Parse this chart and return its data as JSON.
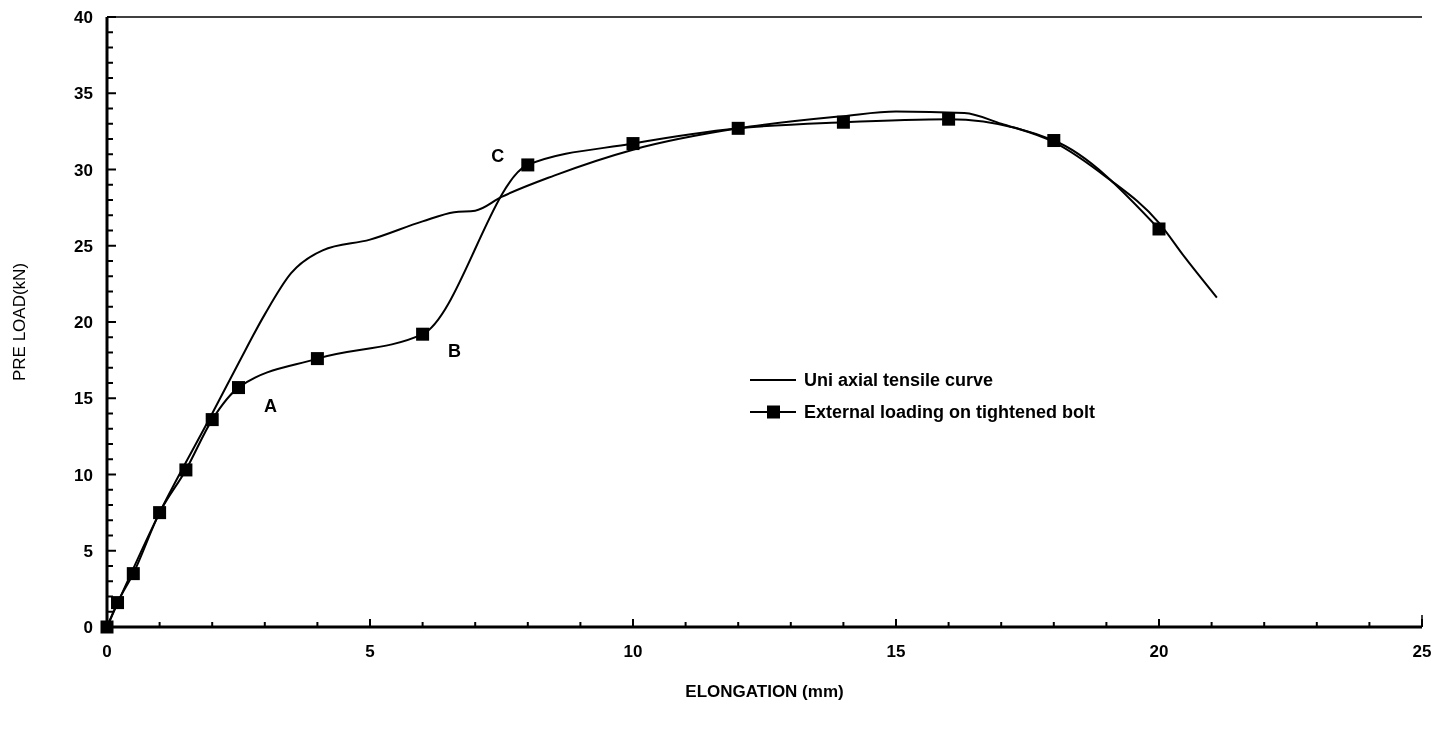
{
  "chart_data": {
    "type": "line",
    "xlabel": "ELONGATION (mm)",
    "ylabel": "PRE LOAD(kN)",
    "xlim": [
      0,
      25
    ],
    "ylim": [
      0,
      40
    ],
    "xticks": [
      0,
      {
        "value": 1,
        "label": null
      },
      {
        "value": 2,
        "label": null
      },
      {
        "value": 3,
        "label": null
      },
      {
        "value": 4,
        "label": null
      },
      5,
      {
        "value": 6,
        "label": null
      },
      {
        "value": 7,
        "label": null
      },
      {
        "value": 8,
        "label": null
      },
      {
        "value": 9,
        "label": null
      },
      10,
      {
        "value": 11,
        "label": null
      },
      {
        "value": 12,
        "label": null
      },
      {
        "value": 13,
        "label": null
      },
      {
        "value": 14,
        "label": null
      },
      15,
      {
        "value": 16,
        "label": null
      },
      {
        "value": 17,
        "label": null
      },
      {
        "value": 18,
        "label": null
      },
      {
        "value": 19,
        "label": null
      },
      20,
      {
        "value": 21,
        "label": null
      },
      {
        "value": 22,
        "label": null
      },
      {
        "value": 23,
        "label": null
      },
      {
        "value": 24,
        "label": null
      },
      25
    ],
    "yticks": [
      0,
      {
        "value": 1,
        "label": null
      },
      {
        "value": 2,
        "label": null
      },
      {
        "value": 3,
        "label": null
      },
      {
        "value": 4,
        "label": null
      },
      5,
      {
        "value": 6,
        "label": null
      },
      {
        "value": 7,
        "label": null
      },
      {
        "value": 8,
        "label": null
      },
      {
        "value": 9,
        "label": null
      },
      10,
      {
        "value": 11,
        "label": null
      },
      {
        "value": 12,
        "label": null
      },
      {
        "value": 13,
        "label": null
      },
      {
        "value": 14,
        "label": null
      },
      15,
      {
        "value": 16,
        "label": null
      },
      {
        "value": 17,
        "label": null
      },
      {
        "value": 18,
        "label": null
      },
      {
        "value": 19,
        "label": null
      },
      20,
      {
        "value": 21,
        "label": null
      },
      {
        "value": 22,
        "label": null
      },
      {
        "value": 23,
        "label": null
      },
      {
        "value": 24,
        "label": null
      },
      25,
      {
        "value": 26,
        "label": null
      },
      {
        "value": 27,
        "label": null
      },
      {
        "value": 28,
        "label": null
      },
      {
        "value": 29,
        "label": null
      },
      30,
      {
        "value": 31,
        "label": null
      },
      {
        "value": 32,
        "label": null
      },
      {
        "value": 33,
        "label": null
      },
      {
        "value": 34,
        "label": null
      },
      35,
      {
        "value": 36,
        "label": null
      },
      {
        "value": 37,
        "label": null
      },
      {
        "value": 38,
        "label": null
      },
      {
        "value": 39,
        "label": null
      },
      40
    ],
    "grid": false,
    "legend": "right",
    "series": [
      {
        "name": "Uni axial tensile curve",
        "color": "#000000",
        "marker": "none",
        "x": [
          0,
          1,
          2,
          2.5,
          3,
          3.5,
          4.1,
          5,
          6,
          6.6,
          7,
          7.5,
          8.5,
          10,
          12,
          14,
          15,
          16.3,
          17,
          18,
          19,
          20,
          20.5,
          21.1
        ],
        "values": [
          0,
          7.5,
          14,
          17.3,
          20.5,
          23.2,
          24.7,
          25.4,
          26.6,
          27.2,
          27.3,
          28.2,
          29.6,
          31.3,
          32.7,
          33.5,
          33.8,
          33.7,
          33.0,
          31.8,
          29.5,
          26.5,
          24.2,
          21.6
        ]
      },
      {
        "name": "External loading on tightened bolt",
        "color": "#000000",
        "marker": "square",
        "x": [
          0,
          0.2,
          0.5,
          1,
          1.5,
          2,
          2.5,
          4,
          6,
          8,
          10,
          12,
          14,
          16,
          18,
          20
        ],
        "values": [
          0,
          1.6,
          3.5,
          7.5,
          10.3,
          13.6,
          15.7,
          17.6,
          19.2,
          30.3,
          31.7,
          32.7,
          33.1,
          33.3,
          31.9,
          26.1
        ]
      }
    ],
    "annotations": [
      {
        "text": "A",
        "x": 2.5,
        "y": 15.7
      },
      {
        "text": "B",
        "x": 6,
        "y": 19.2
      },
      {
        "text": "C",
        "x": 8,
        "y": 30.3
      }
    ]
  }
}
